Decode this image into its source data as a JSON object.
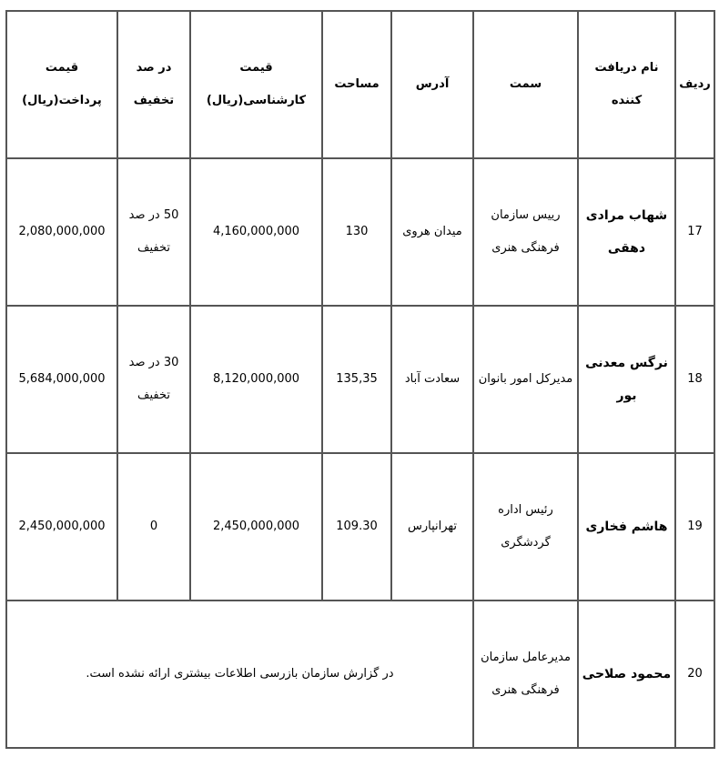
{
  "table": {
    "headers": [
      "ردیف",
      "نام دریافت کننده",
      "سمت",
      "آدرس",
      "مساحت",
      "قیمت کارشناسی(ریال)",
      "در صد تخفیف",
      "قیمت پرداخت(ریال)"
    ],
    "rows": [
      {
        "row": "17",
        "name": "شهاب مرادی دهقی",
        "position": "رییس سازمان فرهنگی هنری",
        "address": "میدان هروی",
        "area": "130",
        "appraised": "4,160,000,000",
        "discount": "50 در صد تخفیف",
        "paid": "2,080,000,000"
      },
      {
        "row": "18",
        "name": "نرگس معدنی بور",
        "position": "مدیرکل امور بانوان",
        "address": "سعادت آباد",
        "area": "135,35",
        "appraised": "8,120,000,000",
        "discount": "30 در صد تخفیف",
        "paid": "5,684,000,000"
      },
      {
        "row": "19",
        "name": "هاشم فخاری",
        "position": "رئیس اداره گردشگری",
        "address": "تهرانپارس",
        "area": "109.30",
        "appraised": "2,450,000,000",
        "discount": "0",
        "paid": "2,450,000,000"
      },
      {
        "row": "20",
        "name": "محمود صلاحی",
        "position": "مدیرعامل سازمان فرهنگی هنری",
        "note": "در گزارش سازمان بازرسی اطلاعات بیشتری ارائه نشده است."
      }
    ]
  }
}
